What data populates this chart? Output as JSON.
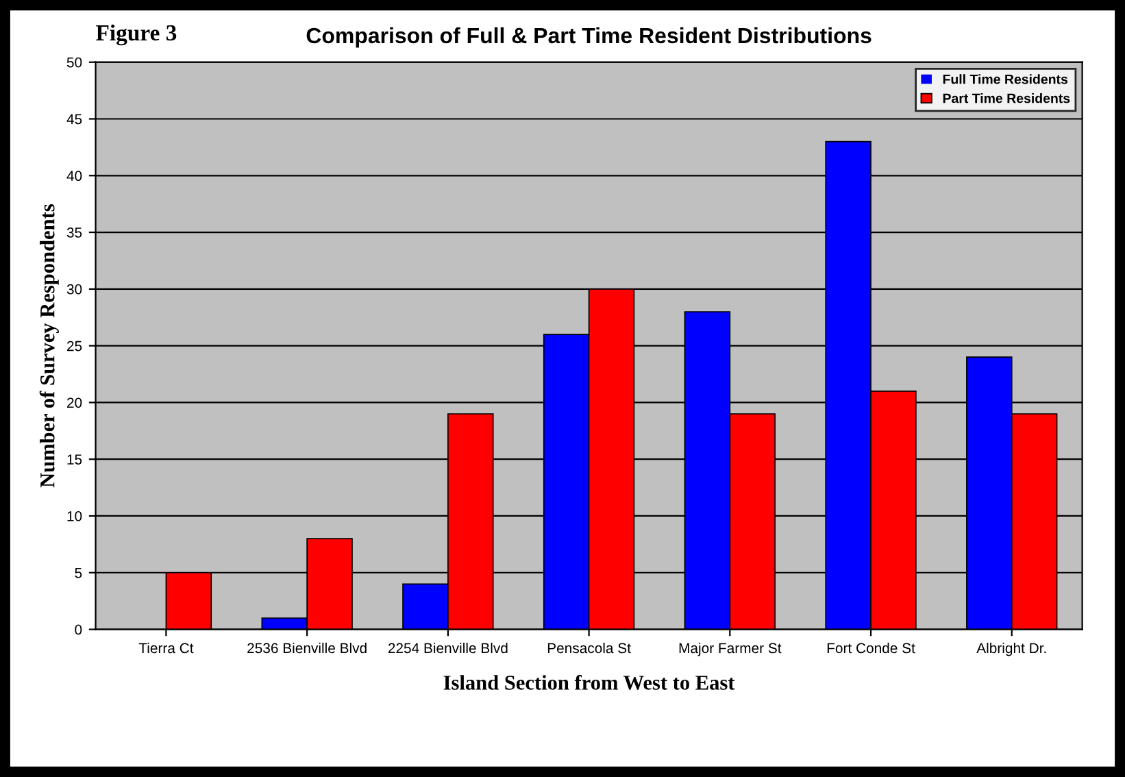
{
  "chart_data": {
    "type": "bar",
    "title": "Comparison of Full & Part Time Resident Distributions",
    "xlabel": "Island Section from West to East",
    "ylabel": "Number of Survey Respondents",
    "annotations": [
      "Figure 3"
    ],
    "categories": [
      "Tierra Ct",
      "2536 Bienville Blvd",
      "2254 Bienville Blvd",
      "Pensacola St",
      "Major Farmer St",
      "Fort Conde St",
      "Albright Dr."
    ],
    "series": [
      {
        "name": "Full Time Residents",
        "color": "#0000ff",
        "values": [
          0,
          1,
          4,
          26,
          28,
          43,
          24
        ]
      },
      {
        "name": "Part Time Residents",
        "color": "#ff0000",
        "values": [
          5,
          8,
          19,
          30,
          19,
          21,
          19
        ]
      }
    ],
    "ylim": [
      0,
      50
    ],
    "yticks": [
      0,
      5,
      10,
      15,
      20,
      25,
      30,
      35,
      40,
      45,
      50
    ],
    "grid": "y",
    "legend": "top right"
  }
}
